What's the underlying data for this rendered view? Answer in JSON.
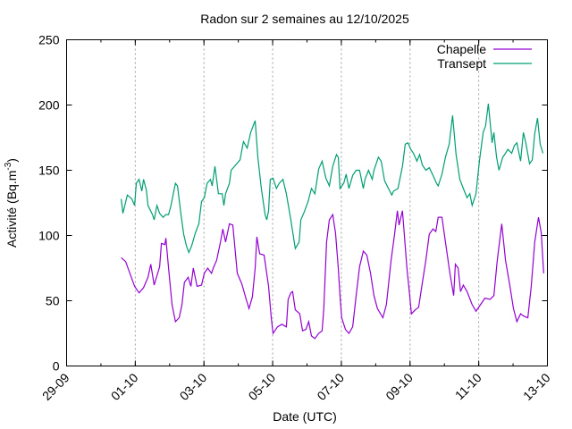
{
  "chart_data": {
    "type": "line",
    "title": "Radon sur 2 semaines au 12/10/2025",
    "xlabel": "Date (UTC)",
    "ylabel": "Activité (Bq.m",
    "ylabel_sup": "-3",
    "ylabel_end": ")",
    "x_unit": "days since 29-09 00:00",
    "xlim": [
      0,
      14
    ],
    "ylim": [
      0,
      250
    ],
    "yticks": [
      0,
      50,
      100,
      150,
      200,
      250
    ],
    "xticks": [
      {
        "value": 0,
        "label": "29-09"
      },
      {
        "value": 2,
        "label": "01-10"
      },
      {
        "value": 4,
        "label": "03-10"
      },
      {
        "value": 6,
        "label": "05-10"
      },
      {
        "value": 8,
        "label": "07-10"
      },
      {
        "value": 10,
        "label": "09-10"
      },
      {
        "value": 12,
        "label": "11-10"
      },
      {
        "value": 14,
        "label": "13-10"
      }
    ],
    "grid": "vertical dotted at major x ticks",
    "legend_placement": "top-right",
    "series": [
      {
        "name": "Chapelle",
        "color": "#9400d3",
        "x": [
          1.59,
          1.72,
          1.98,
          2.11,
          2.24,
          2.37,
          2.45,
          2.55,
          2.71,
          2.76,
          2.86,
          2.89,
          2.97,
          3.07,
          3.17,
          3.28,
          3.36,
          3.43,
          3.54,
          3.62,
          3.69,
          3.8,
          3.93,
          4.01,
          4.11,
          4.22,
          4.27,
          4.37,
          4.48,
          4.55,
          4.63,
          4.74,
          4.84,
          4.97,
          5.1,
          5.23,
          5.31,
          5.41,
          5.49,
          5.54,
          5.62,
          5.75,
          5.88,
          5.96,
          6.01,
          6.14,
          6.27,
          6.4,
          6.45,
          6.53,
          6.58,
          6.66,
          6.79,
          6.87,
          6.97,
          7.05,
          7.13,
          7.23,
          7.34,
          7.44,
          7.49,
          7.57,
          7.65,
          7.75,
          7.83,
          7.91,
          7.96,
          8.01,
          8.12,
          8.22,
          8.33,
          8.43,
          8.53,
          8.64,
          8.74,
          8.85,
          8.95,
          9.05,
          9.21,
          9.31,
          9.45,
          9.55,
          9.63,
          9.68,
          9.78,
          9.84,
          9.91,
          9.99,
          10.04,
          10.15,
          10.25,
          10.36,
          10.46,
          10.56,
          10.67,
          10.75,
          10.82,
          10.93,
          11.03,
          11.16,
          11.27,
          11.32,
          11.4,
          11.47,
          11.55,
          11.66,
          11.81,
          11.92,
          12.05,
          12.18,
          12.33,
          12.44,
          12.54,
          12.67,
          12.78,
          12.91,
          13.01,
          13.11,
          13.22,
          13.32,
          13.43,
          13.53,
          13.63,
          13.74,
          13.82,
          13.89
        ],
        "y": [
          83,
          80,
          61,
          56,
          60,
          68,
          78,
          62,
          76,
          94,
          93,
          98,
          75,
          47,
          34,
          37,
          47,
          64,
          68,
          61,
          75,
          61,
          62,
          71,
          75,
          71,
          75,
          81,
          95,
          105,
          95,
          109,
          108,
          71,
          63,
          51,
          44,
          53,
          75,
          99,
          86,
          85,
          61,
          37,
          25,
          30,
          32,
          30,
          51,
          56,
          57,
          43,
          40,
          27,
          28,
          34,
          23,
          21,
          25,
          27,
          44,
          95,
          112,
          116,
          102,
          75,
          54,
          37,
          28,
          25,
          30,
          54,
          76,
          88,
          85,
          71,
          54,
          44,
          37,
          47,
          81,
          101,
          119,
          108,
          119,
          99,
          75,
          54,
          40,
          43,
          45,
          64,
          81,
          101,
          105,
          103,
          114,
          114,
          95,
          71,
          54,
          78,
          75,
          57,
          62,
          57,
          47,
          42,
          47,
          52,
          51,
          54,
          81,
          109,
          81,
          61,
          44,
          34,
          40,
          38,
          37,
          61,
          95,
          114,
          102,
          71
        ]
      },
      {
        "name": "Transept",
        "color": "#009e73",
        "x": [
          1.59,
          1.64,
          1.77,
          1.9,
          1.98,
          2.03,
          2.11,
          2.19,
          2.24,
          2.32,
          2.37,
          2.5,
          2.55,
          2.63,
          2.71,
          2.81,
          2.89,
          2.97,
          3.04,
          3.17,
          3.23,
          3.33,
          3.41,
          3.49,
          3.56,
          3.64,
          3.75,
          3.85,
          3.93,
          4.01,
          4.09,
          4.19,
          4.24,
          4.32,
          4.42,
          4.53,
          4.58,
          4.63,
          4.74,
          4.79,
          4.89,
          5.05,
          5.15,
          5.26,
          5.36,
          5.49,
          5.57,
          5.67,
          5.78,
          5.83,
          5.88,
          5.93,
          6.01,
          6.11,
          6.19,
          6.3,
          6.4,
          6.53,
          6.66,
          6.77,
          6.82,
          6.92,
          7.03,
          7.13,
          7.23,
          7.34,
          7.44,
          7.55,
          7.65,
          7.75,
          7.86,
          7.91,
          7.96,
          8.07,
          8.14,
          8.22,
          8.33,
          8.43,
          8.53,
          8.64,
          8.69,
          8.79,
          8.9,
          8.95,
          9.08,
          9.16,
          9.26,
          9.37,
          9.47,
          9.52,
          9.65,
          9.78,
          9.86,
          9.94,
          10.02,
          10.1,
          10.2,
          10.28,
          10.36,
          10.46,
          10.56,
          10.67,
          10.77,
          10.82,
          10.93,
          11.03,
          11.14,
          11.24,
          11.34,
          11.45,
          11.55,
          11.66,
          11.74,
          11.81,
          11.92,
          12.02,
          12.13,
          12.2,
          12.28,
          12.39,
          12.44,
          12.52,
          12.59,
          12.7,
          12.78,
          12.85,
          12.96,
          13.04,
          13.11,
          13.22,
          13.3,
          13.37,
          13.48,
          13.56,
          13.63,
          13.71,
          13.79,
          13.87
        ],
        "y": [
          128,
          117,
          131,
          128,
          123,
          140,
          143,
          134,
          143,
          135,
          123,
          116,
          112,
          123,
          117,
          114,
          116,
          116,
          123,
          140,
          138,
          116,
          101,
          92,
          87,
          92,
          102,
          109,
          126,
          129,
          140,
          143,
          138,
          153,
          132,
          132,
          123,
          132,
          140,
          150,
          153,
          158,
          172,
          167,
          179,
          188,
          160,
          136,
          116,
          112,
          119,
          143,
          144,
          136,
          140,
          143,
          132,
          112,
          90,
          95,
          112,
          118,
          126,
          136,
          132,
          151,
          157,
          144,
          138,
          153,
          162,
          160,
          136,
          140,
          147,
          136,
          146,
          150,
          150,
          136,
          143,
          150,
          143,
          150,
          160,
          157,
          142,
          136,
          131,
          134,
          136,
          153,
          170,
          171,
          166,
          163,
          157,
          162,
          154,
          150,
          152,
          146,
          140,
          138,
          147,
          160,
          170,
          192,
          162,
          143,
          136,
          129,
          132,
          123,
          132,
          157,
          179,
          184,
          201,
          171,
          179,
          160,
          150,
          160,
          163,
          166,
          163,
          169,
          171,
          157,
          179,
          171,
          155,
          158,
          178,
          190,
          170,
          163
        ]
      }
    ]
  }
}
